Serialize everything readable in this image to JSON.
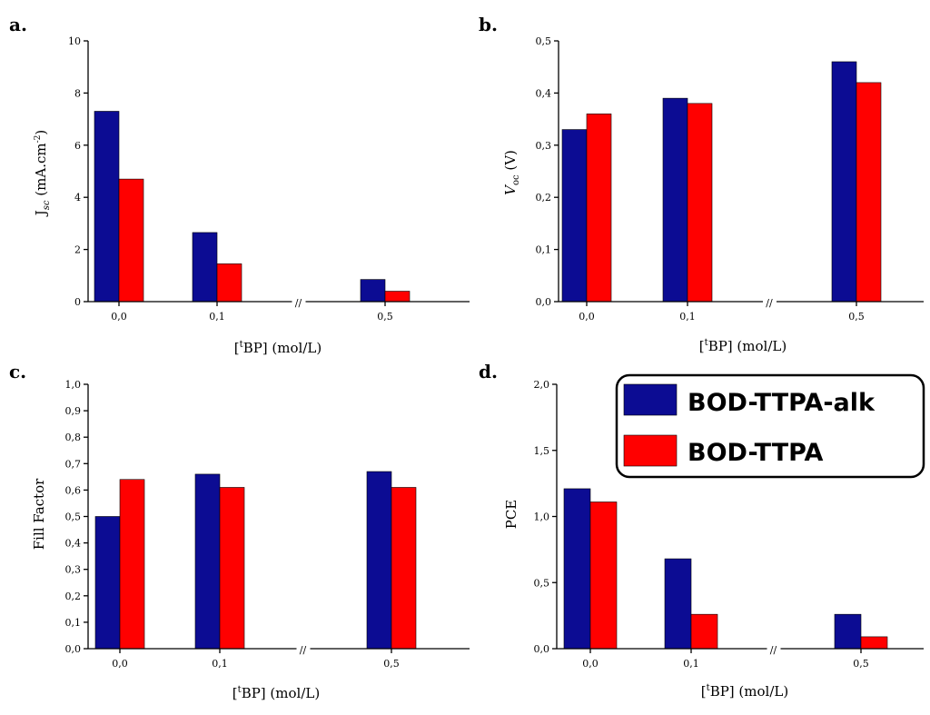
{
  "colors": {
    "series1": "#0c0c93",
    "series2": "#ff0000"
  },
  "legend": {
    "series": [
      "BOD-TTPA-alk",
      "BOD-TTPA"
    ]
  },
  "chart_data": [
    {
      "panel_label": "a.",
      "type": "bar",
      "categories": [
        "0,0",
        "0,1",
        "0,5"
      ],
      "series": [
        {
          "name": "BOD-TTPA-alk",
          "values": [
            7.3,
            2.65,
            0.85
          ]
        },
        {
          "name": "BOD-TTPA",
          "values": [
            4.7,
            1.45,
            0.4
          ]
        }
      ],
      "ylabel_main": "J",
      "ylabel_sub": "sc",
      "ylabel_rest": " (mA.cm",
      "ylabel_sup": "-2",
      "ylabel_end": ")",
      "xlabel_pre": "[",
      "xlabel_sup": "t",
      "xlabel_post": "BP] (mol/L)",
      "ylim": [
        0,
        10
      ],
      "yticks": [
        "0",
        "2",
        "4",
        "6",
        "8",
        "10"
      ],
      "axis_break": "//"
    },
    {
      "panel_label": "b.",
      "type": "bar",
      "categories": [
        "0,0",
        "0,1",
        "0,5"
      ],
      "series": [
        {
          "name": "BOD-TTPA-alk",
          "values": [
            0.33,
            0.39,
            0.46
          ]
        },
        {
          "name": "BOD-TTPA",
          "values": [
            0.36,
            0.38,
            0.42
          ]
        }
      ],
      "ylabel_main": "V",
      "ylabel_sub": "oc",
      "ylabel_rest": " (V)",
      "xlabel_pre": "[",
      "xlabel_sup": "t",
      "xlabel_post": "BP] (mol/L)",
      "ylim": [
        0,
        0.5
      ],
      "yticks": [
        "0,0",
        "0,1",
        "0,2",
        "0,3",
        "0,4",
        "0,5"
      ],
      "axis_break": "//"
    },
    {
      "panel_label": "c.",
      "type": "bar",
      "categories": [
        "0,0",
        "0,1",
        "0,5"
      ],
      "series": [
        {
          "name": "BOD-TTPA-alk",
          "values": [
            0.5,
            0.66,
            0.67
          ]
        },
        {
          "name": "BOD-TTPA",
          "values": [
            0.64,
            0.61,
            0.61
          ]
        }
      ],
      "ylabel_main": "Fill Factor",
      "xlabel_pre": "[",
      "xlabel_sup": "t",
      "xlabel_post": "BP] (mol/L)",
      "ylim": [
        0,
        1.0
      ],
      "yticks": [
        "0,0",
        "0,1",
        "0,2",
        "0,3",
        "0,4",
        "0,5",
        "0,6",
        "0,7",
        "0,8",
        "0,9",
        "1,0"
      ],
      "axis_break": "//"
    },
    {
      "panel_label": "d.",
      "type": "bar",
      "categories": [
        "0,0",
        "0,1",
        "0,5"
      ],
      "series": [
        {
          "name": "BOD-TTPA-alk",
          "values": [
            1.21,
            0.68,
            0.26
          ]
        },
        {
          "name": "BOD-TTPA",
          "values": [
            1.11,
            0.26,
            0.09
          ]
        }
      ],
      "ylabel_main": "PCE",
      "xlabel_pre": "[",
      "xlabel_sup": "t",
      "xlabel_post": "BP] (mol/L)",
      "ylim": [
        0,
        2.0
      ],
      "yticks": [
        "0,0",
        "0,5",
        "1,0",
        "1,5",
        "2,0"
      ],
      "axis_break": "//"
    }
  ]
}
